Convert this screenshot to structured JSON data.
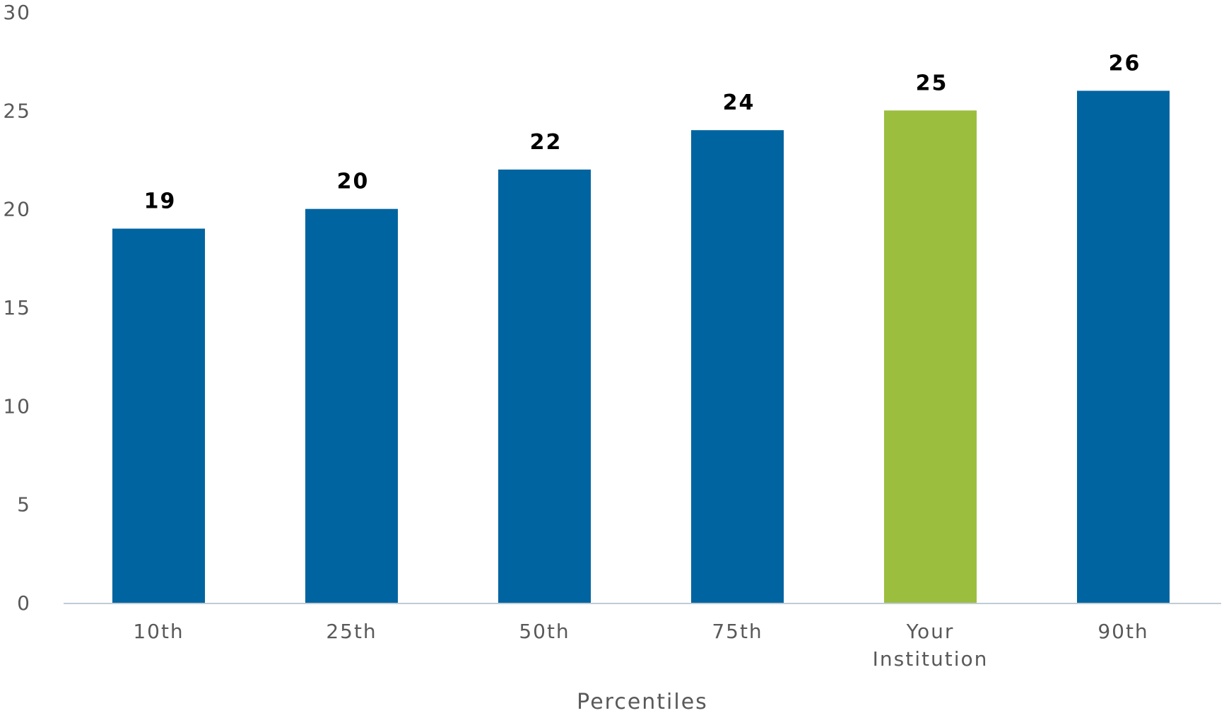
{
  "chart_data": {
    "type": "bar",
    "title": "",
    "xlabel": "Percentiles",
    "ylabel": "",
    "ylim": [
      0,
      30
    ],
    "y_ticks": [
      0,
      5,
      10,
      15,
      20,
      25,
      30
    ],
    "grid": false,
    "legend": "none",
    "categories": [
      "10th",
      "25th",
      "50th",
      "75th",
      "Your Institution",
      "90th"
    ],
    "category_lines": [
      [
        "10th"
      ],
      [
        "25th"
      ],
      [
        "50th"
      ],
      [
        "75th"
      ],
      [
        "Your",
        "Institution"
      ],
      [
        "90th"
      ]
    ],
    "values": [
      19,
      20,
      22,
      24,
      25,
      26
    ],
    "data_labels": [
      "19",
      "20",
      "22",
      "24",
      "25",
      "26"
    ],
    "colors": {
      "default_bar": "#0064A0",
      "highlight_bar": "#9BBE3E",
      "axis_line": "#BFCCD6"
    },
    "highlight_category": "Your Institution"
  }
}
